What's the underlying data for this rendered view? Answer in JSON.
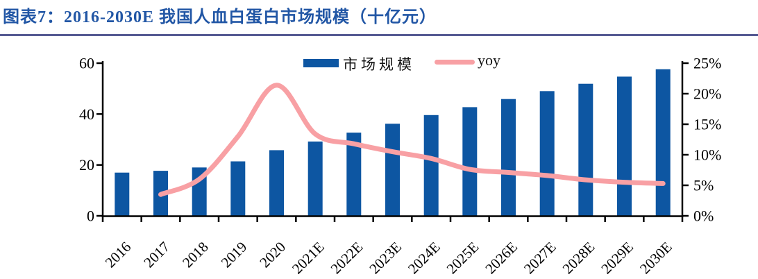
{
  "header": {
    "title": "图表7：2016-2030E 我国人血白蛋白市场规模（十亿元）"
  },
  "colors": {
    "bar": "#0d56a2",
    "line": "#f8a0a4",
    "title": "#2156a5",
    "divider": "#565b93",
    "axis": "#000000"
  },
  "chart_data": {
    "type": "bar",
    "title": "图表7：2016-2030E 我国人血白蛋白市场规模（十亿元）",
    "categories": [
      "2016",
      "2017",
      "2018",
      "2019",
      "2020",
      "2021E",
      "2022E",
      "2023E",
      "2024E",
      "2025E",
      "2026E",
      "2027E",
      "2028E",
      "2029E",
      "2030E"
    ],
    "series": [
      {
        "name": "市场规模",
        "type": "bar",
        "axis": "left",
        "values": [
          17.0,
          17.7,
          19.0,
          21.4,
          25.8,
          29.2,
          32.7,
          36.2,
          39.6,
          42.7,
          45.9,
          49.0,
          51.9,
          54.7,
          57.6
        ]
      },
      {
        "name": "yoy",
        "type": "line",
        "axis": "right",
        "values": [
          null,
          3.5,
          6.0,
          13.0,
          21.4,
          13.4,
          11.8,
          10.5,
          9.4,
          7.6,
          7.1,
          6.6,
          5.9,
          5.5,
          5.3
        ]
      }
    ],
    "left_axis": {
      "tick_labels": [
        "0",
        "20",
        "40",
        "60"
      ],
      "tick_values": [
        0,
        20,
        40,
        60
      ],
      "range": [
        0,
        60
      ]
    },
    "right_axis": {
      "tick_labels": [
        "0%",
        "5%",
        "10%",
        "15%",
        "20%",
        "25%"
      ],
      "tick_values": [
        0,
        5,
        10,
        15,
        20,
        25
      ],
      "range": [
        0,
        25
      ]
    },
    "legend": {
      "position": "top-center",
      "entries": [
        "市场规模",
        "yoy"
      ]
    },
    "grid": false,
    "x_label_rotation_deg": -45
  }
}
